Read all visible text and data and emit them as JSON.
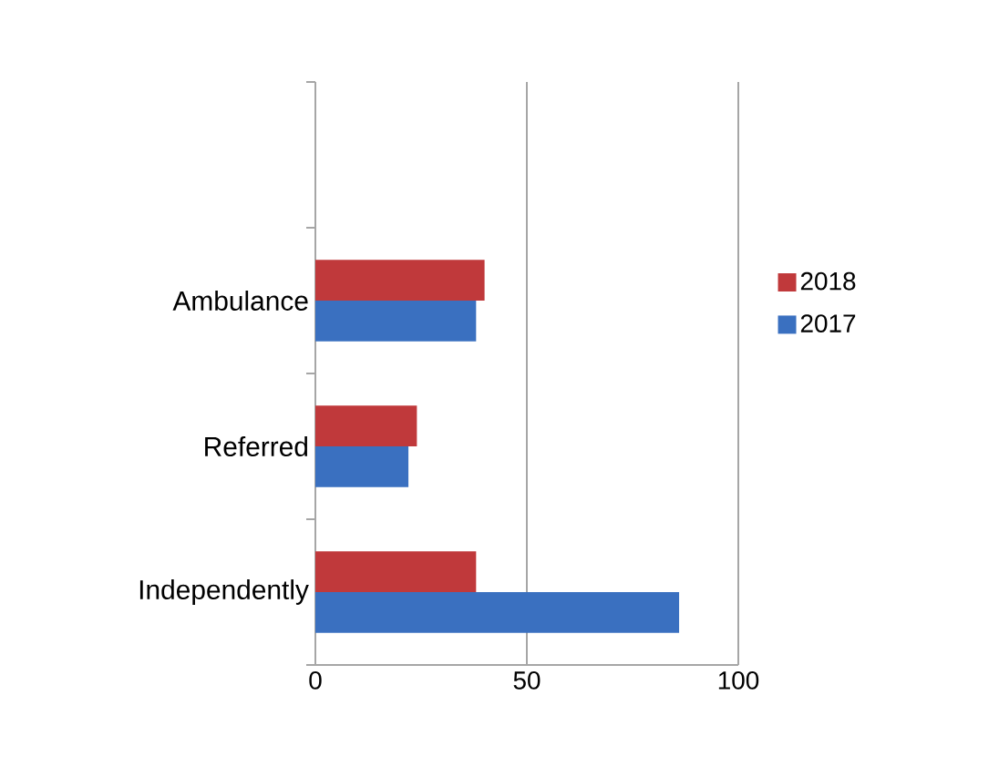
{
  "chart_data": {
    "type": "bar",
    "orientation": "horizontal",
    "categories": [
      null,
      "Ambulance",
      "Referred",
      "Independently"
    ],
    "series": [
      {
        "name": "2018",
        "color": "#c0393b",
        "values": [
          null,
          40,
          24,
          38
        ]
      },
      {
        "name": "2017",
        "color": "#3a70c0",
        "values": [
          null,
          38,
          22,
          86
        ]
      }
    ],
    "xlim": [
      0,
      100
    ],
    "xticks": [
      0,
      50,
      100
    ],
    "grid": "x",
    "legend": "right"
  }
}
